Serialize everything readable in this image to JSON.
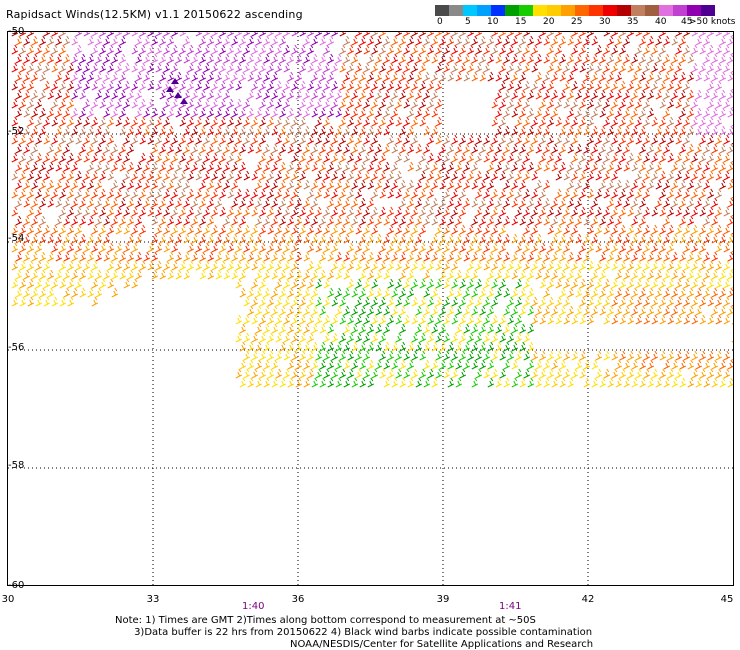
{
  "title": "Rapidsact Winds(12.5KM) v1.1 20150622 ascending",
  "legend": {
    "labels": [
      "0",
      "5",
      "10",
      "15",
      "20",
      "25",
      "30",
      "35",
      "40",
      "45",
      ">50 knots"
    ],
    "colors": [
      "#4a4a4a",
      "#8a8a8a",
      "#00c8ff",
      "#00a0ff",
      "#0032ff",
      "#00a000",
      "#18cc00",
      "#ffe000",
      "#ffcc00",
      "#ffa000",
      "#ff6600",
      "#ff3300",
      "#ee0000",
      "#b40000",
      "#c08060",
      "#a06040",
      "#e070e0",
      "#c040d0",
      "#9000b0",
      "#500090"
    ]
  },
  "map": {
    "y_tick_labels": [
      "-50",
      "-52",
      "-54",
      "-56",
      "-58",
      "-60"
    ],
    "x_tick_labels": [
      "30",
      "33",
      "36",
      "39",
      "42",
      "45"
    ],
    "time_labels": [
      "1:40",
      "1:41"
    ]
  },
  "notes": {
    "line1": "Note: 1) Times are GMT 2)Times along bottom correspond to measurement at ~50S",
    "line2": "      3)Data buffer is 22 hrs from 20150622 4) Black wind barbs indicate possible contamination",
    "line3": "NOAA/NESDIS/Center for Satellite Applications and Research"
  }
}
